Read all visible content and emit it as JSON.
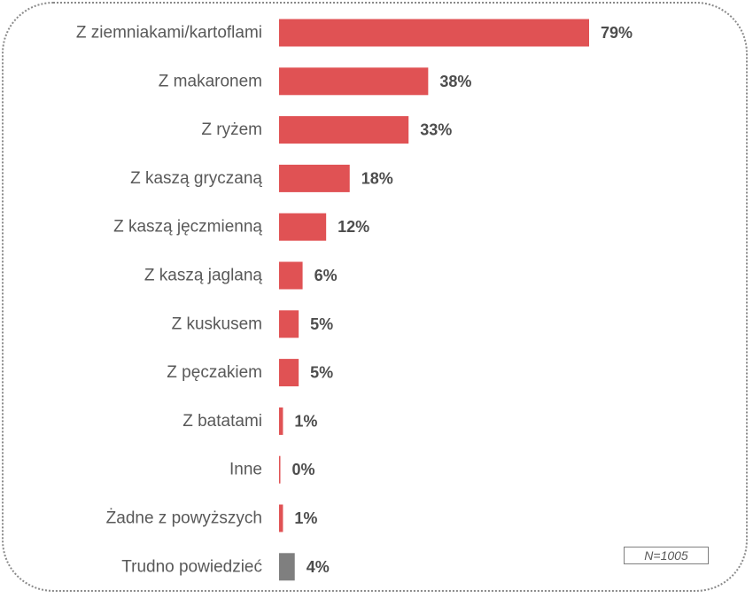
{
  "chart_data": {
    "type": "bar",
    "orientation": "horizontal",
    "categories": [
      "Z ziemniakami/kartoflami",
      "Z makaronem",
      "Z ryżem",
      "Z kaszą gryczaną",
      "Z kaszą jęczmienną",
      "Z kaszą jaglaną",
      "Z kuskusem",
      "Z pęczakiem",
      "Z batatami",
      "Inne",
      "Żadne z powyższych",
      "Trudno powiedzieć"
    ],
    "values": [
      79,
      38,
      33,
      18,
      12,
      6,
      5,
      5,
      1,
      0,
      1,
      4
    ],
    "value_labels": [
      "79%",
      "38%",
      "33%",
      "18%",
      "12%",
      "6%",
      "5%",
      "5%",
      "1%",
      "0%",
      "1%",
      "4%"
    ],
    "bar_colors": [
      "#e05254",
      "#e05254",
      "#e05254",
      "#e05254",
      "#e05254",
      "#e05254",
      "#e05254",
      "#e05254",
      "#e05254",
      "#e05254",
      "#e05254",
      "#7f7f7f"
    ],
    "xlim": [
      0,
      80
    ],
    "grid": false,
    "note": "N=1005"
  }
}
